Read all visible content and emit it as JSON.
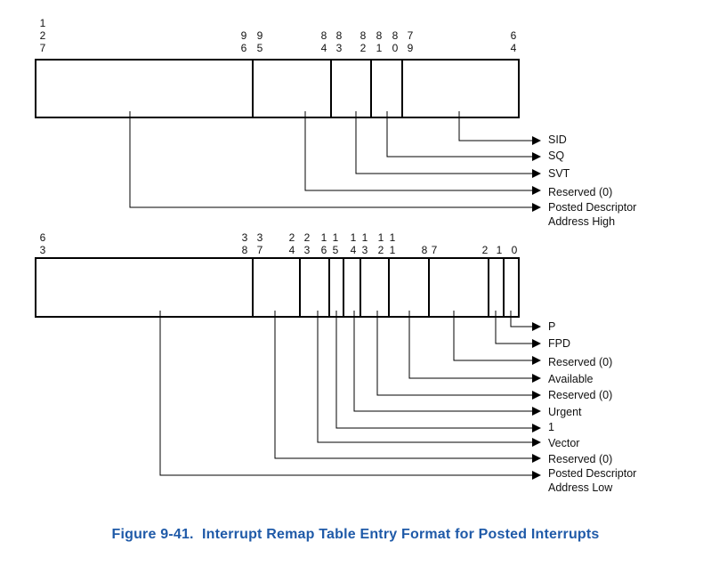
{
  "upper_register": {
    "bit_labels": [
      {
        "digits": [
          "1",
          "2",
          "7"
        ]
      },
      {
        "digits": [
          "9",
          "6"
        ]
      },
      {
        "digits": [
          "9",
          "5"
        ]
      },
      {
        "digits": [
          "8",
          "4"
        ]
      },
      {
        "digits": [
          "8",
          "3"
        ]
      },
      {
        "digits": [
          "8",
          "2"
        ]
      },
      {
        "digits": [
          "8",
          "1"
        ]
      },
      {
        "digits": [
          "8",
          "0"
        ]
      },
      {
        "digits": [
          "7",
          "9"
        ]
      },
      {
        "digits": [
          "6",
          "4"
        ]
      }
    ],
    "fields": [
      {
        "label": "SID"
      },
      {
        "label": "SQ"
      },
      {
        "label": "SVT"
      },
      {
        "label": "Reserved (0)"
      },
      {
        "label": "Posted Descriptor",
        "label_line2": "Address High"
      }
    ]
  },
  "lower_register": {
    "bit_labels": [
      {
        "digits": [
          "6",
          "3"
        ]
      },
      {
        "digits": [
          "3",
          "8"
        ]
      },
      {
        "digits": [
          "3",
          "7"
        ]
      },
      {
        "digits": [
          "2",
          "4"
        ]
      },
      {
        "digits": [
          "2",
          "3"
        ]
      },
      {
        "digits": [
          "1",
          "6"
        ]
      },
      {
        "digits": [
          "1",
          "5"
        ]
      },
      {
        "digits": [
          "1",
          "4"
        ]
      },
      {
        "digits": [
          "1",
          "3"
        ]
      },
      {
        "digits": [
          "1",
          "2"
        ]
      },
      {
        "digits": [
          "1",
          "1"
        ]
      },
      {
        "digits": [
          "8"
        ]
      },
      {
        "digits": [
          "7"
        ]
      },
      {
        "digits": [
          "2"
        ]
      },
      {
        "digits": [
          "1"
        ]
      },
      {
        "digits": [
          "0"
        ]
      }
    ],
    "fields": [
      {
        "label": "P"
      },
      {
        "label": "FPD"
      },
      {
        "label": "Reserved (0)"
      },
      {
        "label": "Available"
      },
      {
        "label": "Reserved (0)"
      },
      {
        "label": "Urgent"
      },
      {
        "label": "1"
      },
      {
        "label": "Vector"
      },
      {
        "label": "Reserved (0)"
      },
      {
        "label": "Posted Descriptor",
        "label_line2": "Address Low"
      }
    ]
  },
  "caption": {
    "figure_number": "Figure 9-41.",
    "title": "Interrupt Remap Table Entry Format for Posted Interrupts"
  }
}
